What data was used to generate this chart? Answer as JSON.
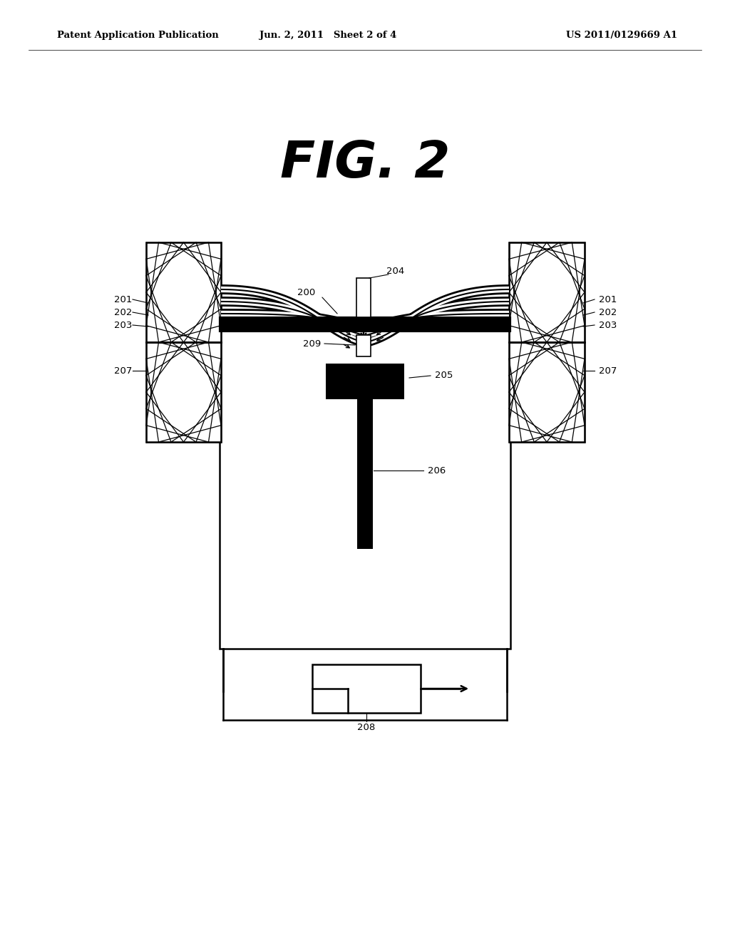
{
  "title": "FIG. 2",
  "header_left": "Patent Application Publication",
  "header_mid": "Jun. 2, 2011   Sheet 2 of 4",
  "header_right": "US 2011/0129669 A1",
  "bg_color": "#ffffff"
}
